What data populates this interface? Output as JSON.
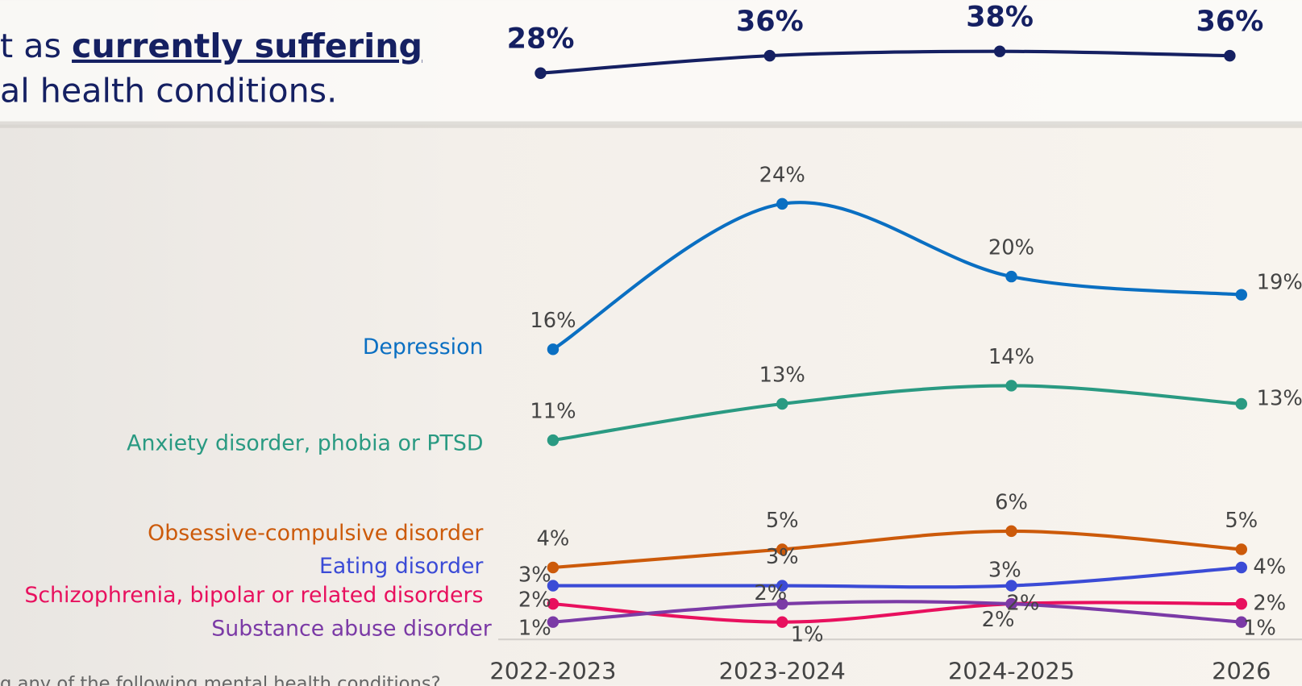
{
  "header": {
    "line1_start": "t as",
    "line1_emphasis": "currently suffering",
    "line2": "al health conditions."
  },
  "footnote": "g any of the following mental health conditions?",
  "chart_data": [
    {
      "type": "line",
      "color": "#152062",
      "values": [
        28,
        36,
        38,
        36
      ],
      "value_labels": [
        "28%",
        "36%",
        "38%",
        "36%"
      ]
    },
    {
      "type": "line",
      "categories": [
        "2022-2023",
        "2023-2024",
        "2024-2025",
        "2026"
      ],
      "series": [
        {
          "name": "Depression",
          "color": "#0a6fc2",
          "values": [
            16,
            24,
            20,
            19
          ],
          "value_labels": [
            "16%",
            "24%",
            "20%",
            "19%"
          ]
        },
        {
          "name": "Anxiety disorder, phobia or PTSD",
          "color": "#2a9a82",
          "values": [
            11,
            13,
            14,
            13
          ],
          "value_labels": [
            "11%",
            "13%",
            "14%",
            "13%"
          ]
        },
        {
          "name": "Obsessive-compulsive disorder",
          "color": "#cc5a0a",
          "values": [
            4,
            5,
            6,
            5
          ],
          "value_labels": [
            "4%",
            "5%",
            "6%",
            "5%"
          ]
        },
        {
          "name": "Eating disorder",
          "color": "#3b4bd6",
          "values": [
            3,
            3,
            3,
            4
          ],
          "value_labels": [
            "3%",
            "3%",
            "3%",
            "4%"
          ]
        },
        {
          "name": "Schizophrenia, bipolar or related disorders",
          "color": "#e8105e",
          "values": [
            2,
            1,
            2,
            2
          ],
          "value_labels": [
            "2%",
            "1%",
            "2%",
            "2%"
          ]
        },
        {
          "name": "Substance abuse disorder",
          "color": "#7b3aa6",
          "values": [
            1,
            2,
            2,
            1
          ],
          "value_labels": [
            "1%",
            "2%",
            "2%",
            "1%"
          ]
        }
      ]
    }
  ]
}
